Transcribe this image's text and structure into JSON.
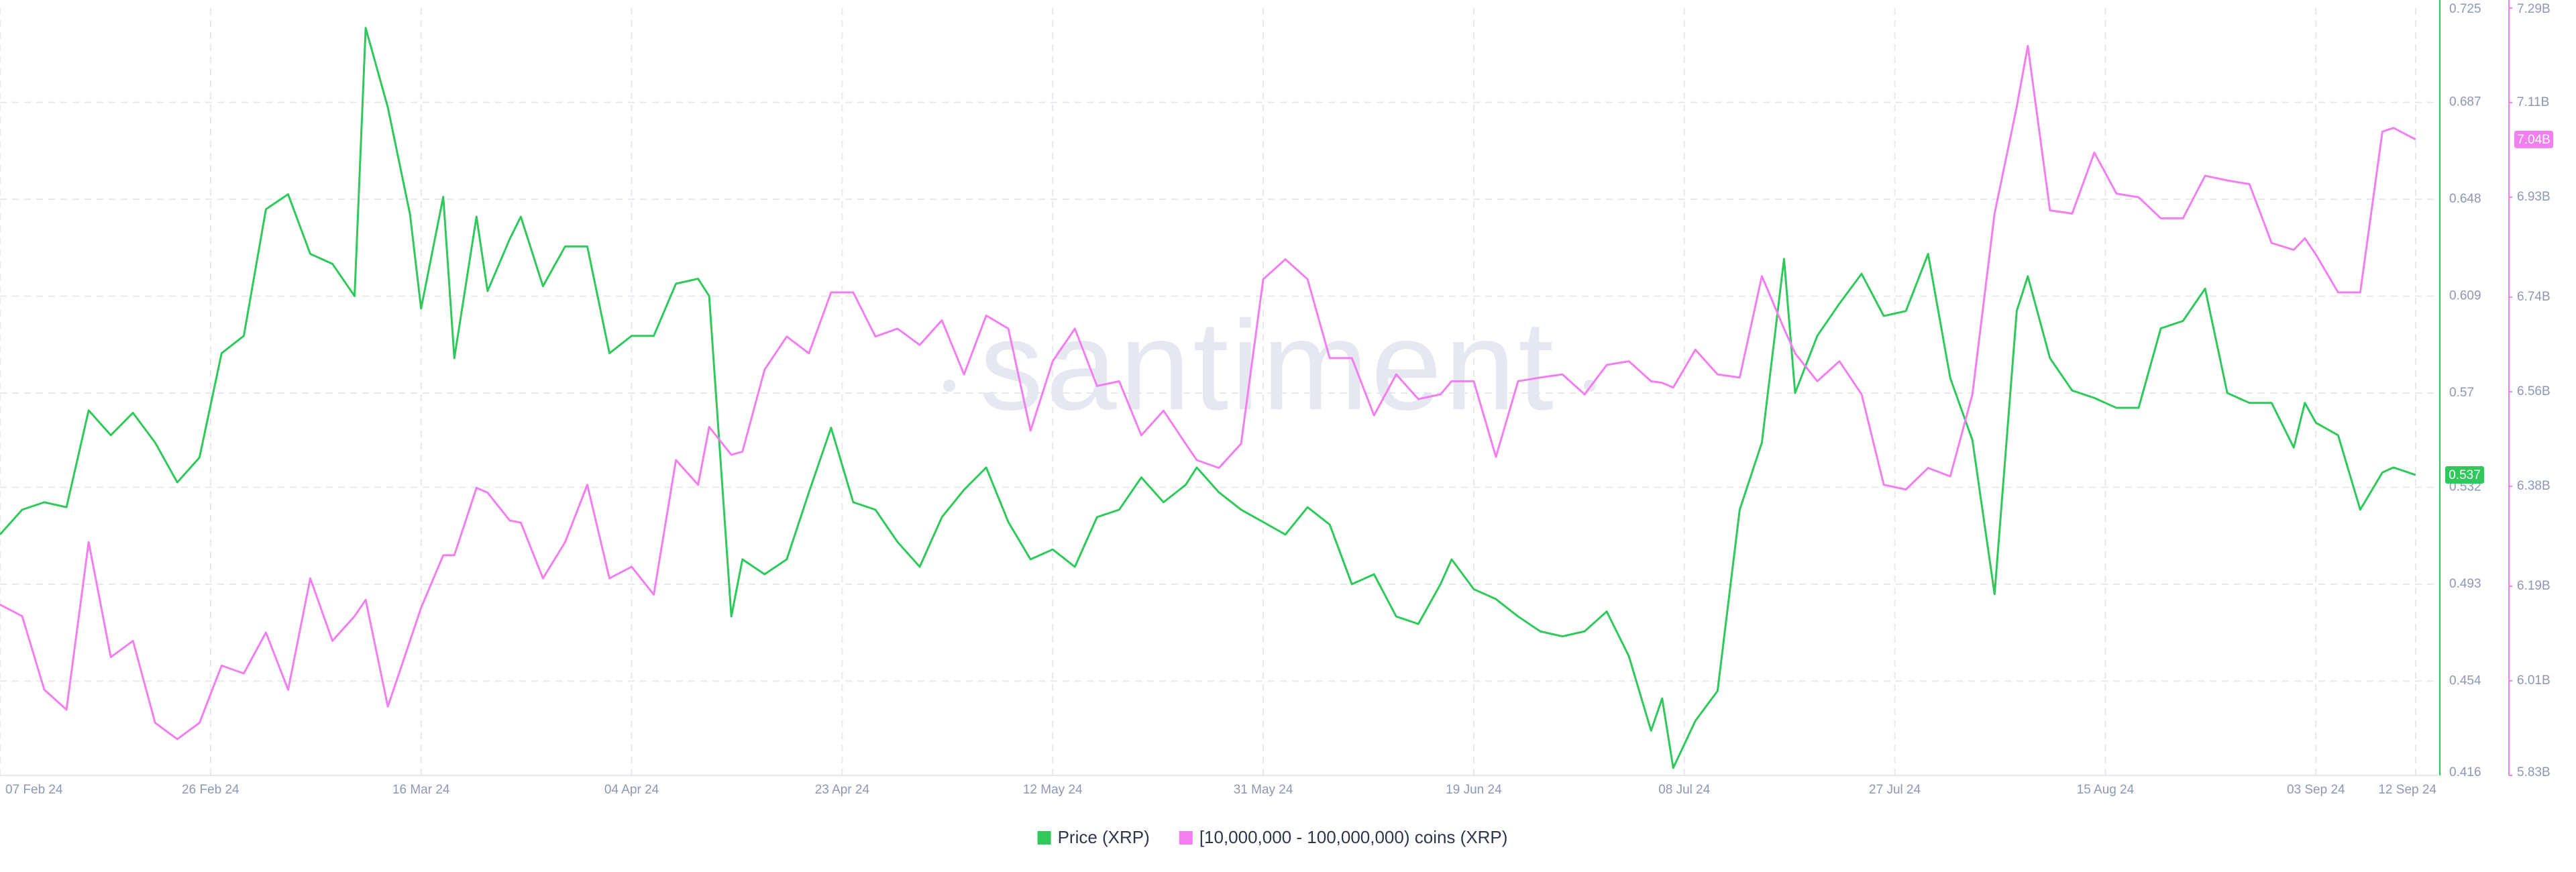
{
  "chart_data": {
    "type": "line",
    "watermark": "santiment",
    "x": [
      "2024-02-07",
      "2024-02-09",
      "2024-02-11",
      "2024-02-13",
      "2024-02-15",
      "2024-02-17",
      "2024-02-19",
      "2024-02-21",
      "2024-02-23",
      "2024-02-25",
      "2024-02-27",
      "2024-02-29",
      "2024-03-02",
      "2024-03-04",
      "2024-03-06",
      "2024-03-08",
      "2024-03-10",
      "2024-03-11",
      "2024-03-13",
      "2024-03-15",
      "2024-03-16",
      "2024-03-18",
      "2024-03-19",
      "2024-03-21",
      "2024-03-22",
      "2024-03-24",
      "2024-03-25",
      "2024-03-27",
      "2024-03-29",
      "2024-03-31",
      "2024-04-02",
      "2024-04-04",
      "2024-04-06",
      "2024-04-08",
      "2024-04-10",
      "2024-04-11",
      "2024-04-13",
      "2024-04-14",
      "2024-04-16",
      "2024-04-18",
      "2024-04-20",
      "2024-04-22",
      "2024-04-24",
      "2024-04-26",
      "2024-04-28",
      "2024-04-30",
      "2024-05-02",
      "2024-05-04",
      "2024-05-06",
      "2024-05-08",
      "2024-05-10",
      "2024-05-12",
      "2024-05-14",
      "2024-05-16",
      "2024-05-18",
      "2024-05-20",
      "2024-05-22",
      "2024-05-24",
      "2024-05-25",
      "2024-05-27",
      "2024-05-29",
      "2024-05-31",
      "2024-06-02",
      "2024-06-04",
      "2024-06-06",
      "2024-06-08",
      "2024-06-10",
      "2024-06-12",
      "2024-06-14",
      "2024-06-16",
      "2024-06-17",
      "2024-06-19",
      "2024-06-21",
      "2024-06-23",
      "2024-06-25",
      "2024-06-27",
      "2024-06-29",
      "2024-07-01",
      "2024-07-03",
      "2024-07-05",
      "2024-07-06",
      "2024-07-07",
      "2024-07-09",
      "2024-07-11",
      "2024-07-13",
      "2024-07-15",
      "2024-07-17",
      "2024-07-18",
      "2024-07-20",
      "2024-07-22",
      "2024-07-24",
      "2024-07-26",
      "2024-07-28",
      "2024-07-30",
      "2024-08-01",
      "2024-08-03",
      "2024-08-05",
      "2024-08-07",
      "2024-08-08",
      "2024-08-10",
      "2024-08-12",
      "2024-08-14",
      "2024-08-16",
      "2024-08-18",
      "2024-08-20",
      "2024-08-22",
      "2024-08-24",
      "2024-08-26",
      "2024-08-28",
      "2024-08-30",
      "2024-09-01",
      "2024-09-02",
      "2024-09-03",
      "2024-09-05",
      "2024-09-07",
      "2024-09-09",
      "2024-09-10",
      "2024-09-12"
    ],
    "xlim": [
      "2024-02-07",
      "2024-09-14"
    ],
    "xticks": [
      {
        "value": "2024-02-07",
        "label": "07 Feb 24"
      },
      {
        "value": "2024-02-26",
        "label": "26 Feb 24"
      },
      {
        "value": "2024-03-16",
        "label": "16 Mar 24"
      },
      {
        "value": "2024-04-04",
        "label": "04 Apr 24"
      },
      {
        "value": "2024-04-23",
        "label": "23 Apr 24"
      },
      {
        "value": "2024-05-12",
        "label": "12 May 24"
      },
      {
        "value": "2024-05-31",
        "label": "31 May 24"
      },
      {
        "value": "2024-06-19",
        "label": "19 Jun 24"
      },
      {
        "value": "2024-07-08",
        "label": "08 Jul 24"
      },
      {
        "value": "2024-07-27",
        "label": "27 Jul 24"
      },
      {
        "value": "2024-08-15",
        "label": "15 Aug 24"
      },
      {
        "value": "2024-09-03",
        "label": "03 Sep 24"
      },
      {
        "value": "2024-09-12",
        "label": "12 Sep 24"
      }
    ],
    "ylim": [
      0.416,
      0.725
    ],
    "yticks": [
      0.416,
      0.454,
      0.493,
      0.532,
      0.57,
      0.609,
      0.648,
      0.687,
      0.725
    ],
    "y2lim": [
      5.83,
      7.29
    ],
    "y2ticks": [
      {
        "value": 5.83,
        "label": "5.83B"
      },
      {
        "value": 6.01,
        "label": "6.01B"
      },
      {
        "value": 6.19,
        "label": "6.19B"
      },
      {
        "value": 6.38,
        "label": "6.38B"
      },
      {
        "value": 6.56,
        "label": "6.56B"
      },
      {
        "value": 6.74,
        "label": "6.74B"
      },
      {
        "value": 6.93,
        "label": "6.93B"
      },
      {
        "value": 7.11,
        "label": "7.11B"
      },
      {
        "value": 7.29,
        "label": "7.29B"
      }
    ],
    "grid": true,
    "legend": "bottom",
    "series": [
      {
        "name": "Price (XRP)",
        "color": "#2ec95a",
        "axis": "y",
        "current_label": "0.537",
        "values": [
          0.513,
          0.523,
          0.526,
          0.524,
          0.563,
          0.553,
          0.562,
          0.55,
          0.534,
          0.544,
          0.586,
          0.593,
          0.644,
          0.65,
          0.626,
          0.622,
          0.609,
          0.717,
          0.685,
          0.642,
          0.604,
          0.649,
          0.584,
          0.641,
          0.611,
          0.632,
          0.641,
          0.613,
          0.629,
          0.629,
          0.586,
          0.593,
          0.593,
          0.614,
          0.616,
          0.609,
          0.48,
          0.503,
          0.497,
          0.503,
          0.53,
          0.556,
          0.526,
          0.523,
          0.51,
          0.5,
          0.52,
          0.531,
          0.54,
          0.518,
          0.503,
          0.507,
          0.5,
          0.52,
          0.523,
          0.536,
          0.526,
          0.533,
          0.54,
          0.53,
          0.523,
          0.518,
          0.513,
          0.524,
          0.517,
          0.493,
          0.497,
          0.48,
          0.477,
          0.493,
          0.503,
          0.491,
          0.487,
          0.48,
          0.474,
          0.472,
          0.474,
          0.482,
          0.464,
          0.434,
          0.447,
          0.419,
          0.438,
          0.45,
          0.523,
          0.55,
          0.624,
          0.57,
          0.593,
          0.606,
          0.618,
          0.601,
          0.603,
          0.626,
          0.576,
          0.551,
          0.489,
          0.603,
          0.617,
          0.584,
          0.571,
          0.568,
          0.564,
          0.564,
          0.596,
          0.599,
          0.612,
          0.57,
          0.566,
          0.566,
          0.548,
          0.566,
          0.558,
          0.553,
          0.523,
          0.538,
          0.54,
          0.537
        ]
      },
      {
        "name": "[10,000,000 - 100,000,000) coins (XRP)",
        "color": "#f27ef0",
        "axis": "y2",
        "current_label": "7.04B",
        "values": [
          6.155,
          6.133,
          5.993,
          5.955,
          6.274,
          6.055,
          6.086,
          5.93,
          5.899,
          5.93,
          6.039,
          6.024,
          6.102,
          5.993,
          6.205,
          6.086,
          6.133,
          6.164,
          5.961,
          6.086,
          6.149,
          6.249,
          6.249,
          6.377,
          6.368,
          6.315,
          6.311,
          6.205,
          6.274,
          6.383,
          6.205,
          6.227,
          6.174,
          6.43,
          6.383,
          6.493,
          6.44,
          6.446,
          6.602,
          6.665,
          6.633,
          6.749,
          6.749,
          6.665,
          6.68,
          6.649,
          6.696,
          6.593,
          6.705,
          6.68,
          6.486,
          6.618,
          6.68,
          6.571,
          6.58,
          6.477,
          6.524,
          6.461,
          6.43,
          6.415,
          6.461,
          6.774,
          6.812,
          6.774,
          6.624,
          6.624,
          6.515,
          6.593,
          6.546,
          6.555,
          6.58,
          6.58,
          6.436,
          6.58,
          6.587,
          6.593,
          6.555,
          6.611,
          6.618,
          6.58,
          6.577,
          6.568,
          6.64,
          6.593,
          6.587,
          6.78,
          6.68,
          6.633,
          6.58,
          6.618,
          6.555,
          6.383,
          6.374,
          6.415,
          6.399,
          6.555,
          6.899,
          7.102,
          7.218,
          6.905,
          6.899,
          7.015,
          6.937,
          6.93,
          6.89,
          6.89,
          6.971,
          6.962,
          6.955,
          6.843,
          6.83,
          6.852,
          6.821,
          6.749,
          6.749,
          7.055,
          7.062,
          7.04
        ]
      }
    ]
  }
}
